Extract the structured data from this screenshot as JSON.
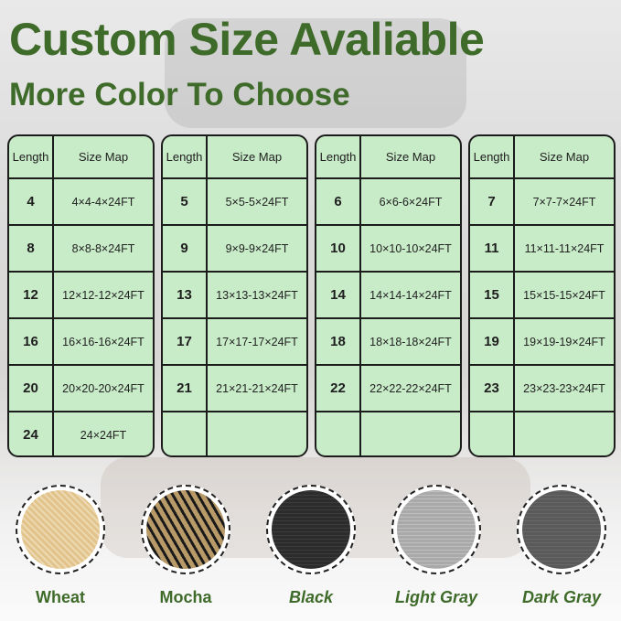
{
  "title": "Custom Size Avaliable",
  "subtitle": "More Color To Choose",
  "table_headers": {
    "length": "Length",
    "size_map": "Size Map"
  },
  "tables": [
    {
      "rows": [
        {
          "length": "4",
          "size": "4×4-4×24FT"
        },
        {
          "length": "8",
          "size": "8×8-8×24FT"
        },
        {
          "length": "12",
          "size": "12×12-12×24FT"
        },
        {
          "length": "16",
          "size": "16×16-16×24FT"
        },
        {
          "length": "20",
          "size": "20×20-20×24FT"
        },
        {
          "length": "24",
          "size": "24×24FT"
        }
      ]
    },
    {
      "rows": [
        {
          "length": "5",
          "size": "5×5-5×24FT"
        },
        {
          "length": "9",
          "size": "9×9-9×24FT"
        },
        {
          "length": "13",
          "size": "13×13-13×24FT"
        },
        {
          "length": "17",
          "size": "17×17-17×24FT"
        },
        {
          "length": "21",
          "size": "21×21-21×24FT"
        },
        {
          "length": "",
          "size": ""
        }
      ]
    },
    {
      "rows": [
        {
          "length": "6",
          "size": "6×6-6×24FT"
        },
        {
          "length": "10",
          "size": "10×10-10×24FT"
        },
        {
          "length": "14",
          "size": "14×14-14×24FT"
        },
        {
          "length": "18",
          "size": "18×18-18×24FT"
        },
        {
          "length": "22",
          "size": "22×22-22×24FT"
        },
        {
          "length": "",
          "size": ""
        }
      ]
    },
    {
      "rows": [
        {
          "length": "7",
          "size": "7×7-7×24FT"
        },
        {
          "length": "11",
          "size": "11×11-11×24FT"
        },
        {
          "length": "15",
          "size": "15×15-15×24FT"
        },
        {
          "length": "19",
          "size": "19×19-19×24FT"
        },
        {
          "length": "23",
          "size": "23×23-23×24FT"
        },
        {
          "length": "",
          "size": ""
        }
      ]
    }
  ],
  "colors": [
    {
      "name": "Wheat",
      "swatch": "#e2c48a",
      "italic": false
    },
    {
      "name": "Mocha",
      "swatch": "#b89a68",
      "italic": false
    },
    {
      "name": "Black",
      "swatch": "#2c2c2c",
      "italic": true
    },
    {
      "name": "Light Gray",
      "swatch": "#a9a9a9",
      "italic": true
    },
    {
      "name": "Dark Gray",
      "swatch": "#5a5a5a",
      "italic": true
    }
  ],
  "theme": {
    "title_color": "#3f6b2a",
    "table_bg": "#c8ebc8"
  }
}
